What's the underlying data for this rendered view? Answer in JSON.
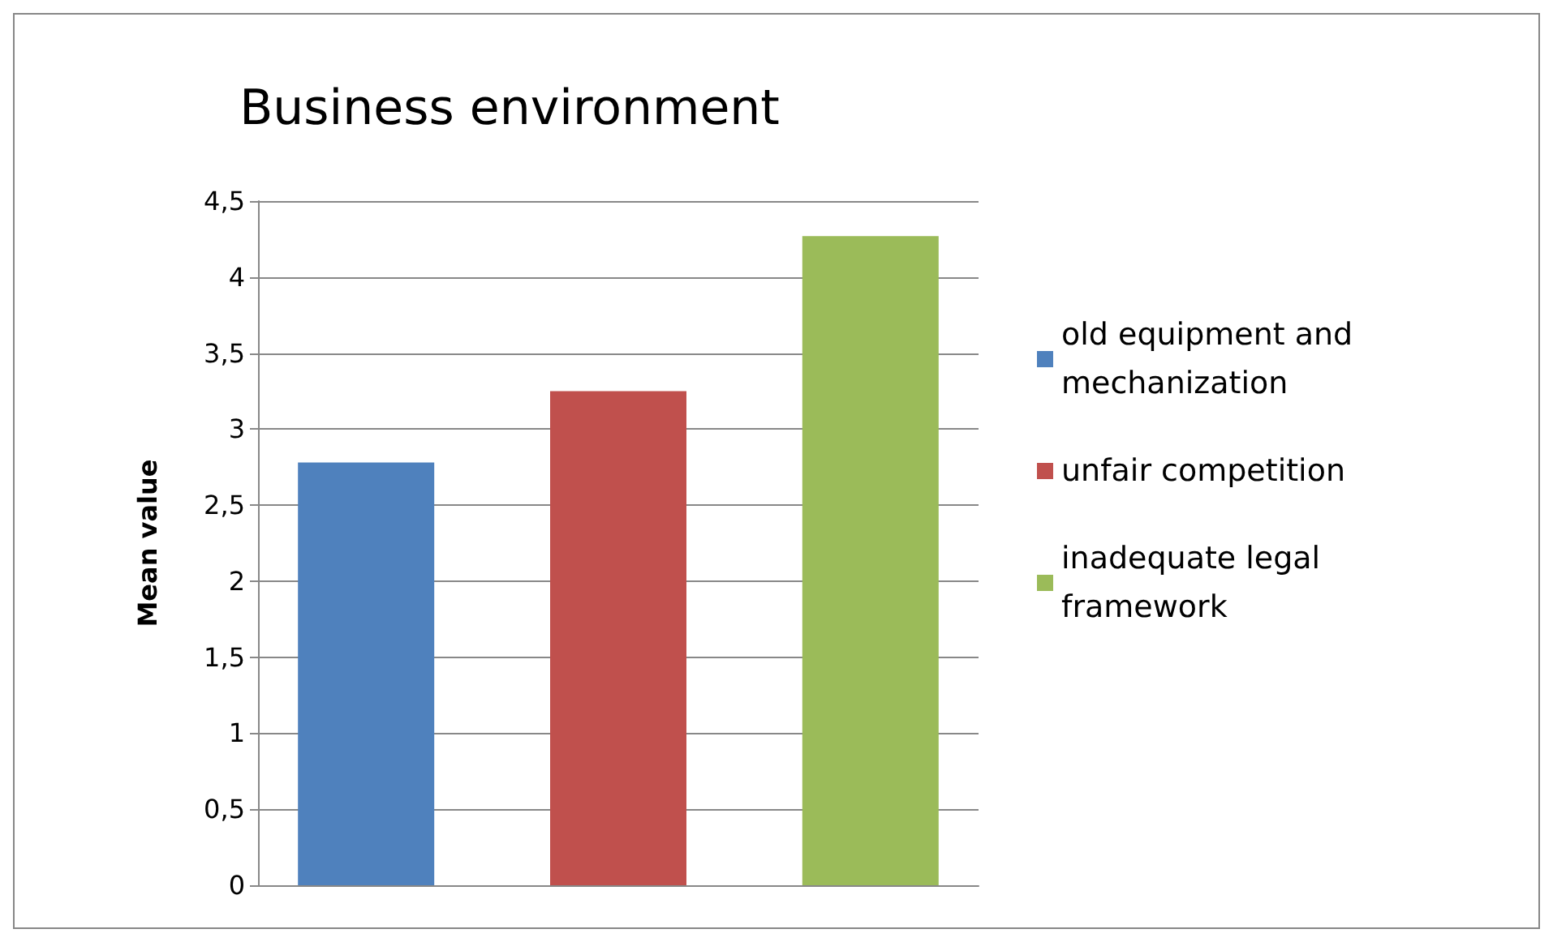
{
  "chart_data": {
    "type": "bar",
    "title": "Business environment",
    "ylabel": "Mean value",
    "categories": [
      null
    ],
    "series": [
      {
        "name": "old equipment and mechanization",
        "color": "#4f81bd",
        "values": [
          2.78
        ]
      },
      {
        "name": "unfair competition",
        "color": "#c0504d",
        "values": [
          3.25
        ]
      },
      {
        "name": "inadequate legal framework",
        "color": "#9bbb59",
        "values": [
          4.27
        ]
      }
    ],
    "ylim": [
      0,
      4.5
    ],
    "yticks": [
      0,
      {
        "value": 0.5,
        "label": "0,5"
      },
      1,
      {
        "value": 1.5,
        "label": "1,5"
      },
      2,
      {
        "value": 2.5,
        "label": "2,5"
      },
      3,
      {
        "value": 3.5,
        "label": "3,5"
      },
      4,
      {
        "value": 4.5,
        "label": "4,5"
      }
    ],
    "grid": "y",
    "legend": "right"
  }
}
